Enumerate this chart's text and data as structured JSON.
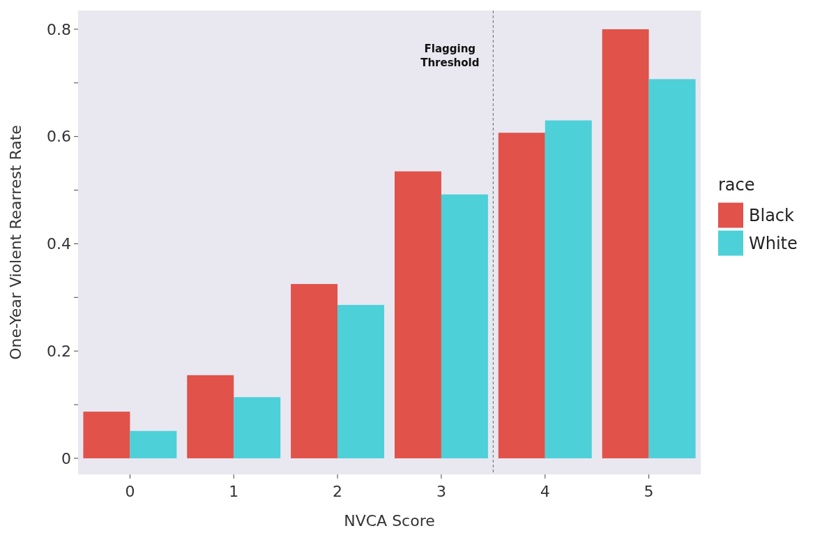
{
  "chart_data": {
    "type": "bar",
    "xlabel": "NVCA Score",
    "ylabel": "One-Year Violent Rearrest Rate",
    "legend_title": "race",
    "categories": [
      "0",
      "1",
      "2",
      "3",
      "4",
      "5"
    ],
    "series": [
      {
        "name": "Black",
        "color": "#e0524a",
        "values": [
          0.087,
          0.155,
          0.325,
          0.535,
          0.607,
          0.8
        ]
      },
      {
        "name": "White",
        "color": "#4dd0d8",
        "values": [
          0.051,
          0.114,
          0.286,
          0.492,
          0.63,
          0.707
        ]
      }
    ],
    "ylim": [
      -0.03,
      0.835
    ],
    "yticks": [
      0,
      {
        "value": 0.1,
        "label": null
      },
      0.2,
      {
        "value": 0.3,
        "label": null
      },
      0.4,
      {
        "value": 0.5,
        "label": null
      },
      0.6,
      {
        "value": 0.7,
        "label": null
      },
      0.8
    ],
    "annotations": [
      "Flagging Threshold"
    ],
    "legend": "right",
    "grid": false
  }
}
